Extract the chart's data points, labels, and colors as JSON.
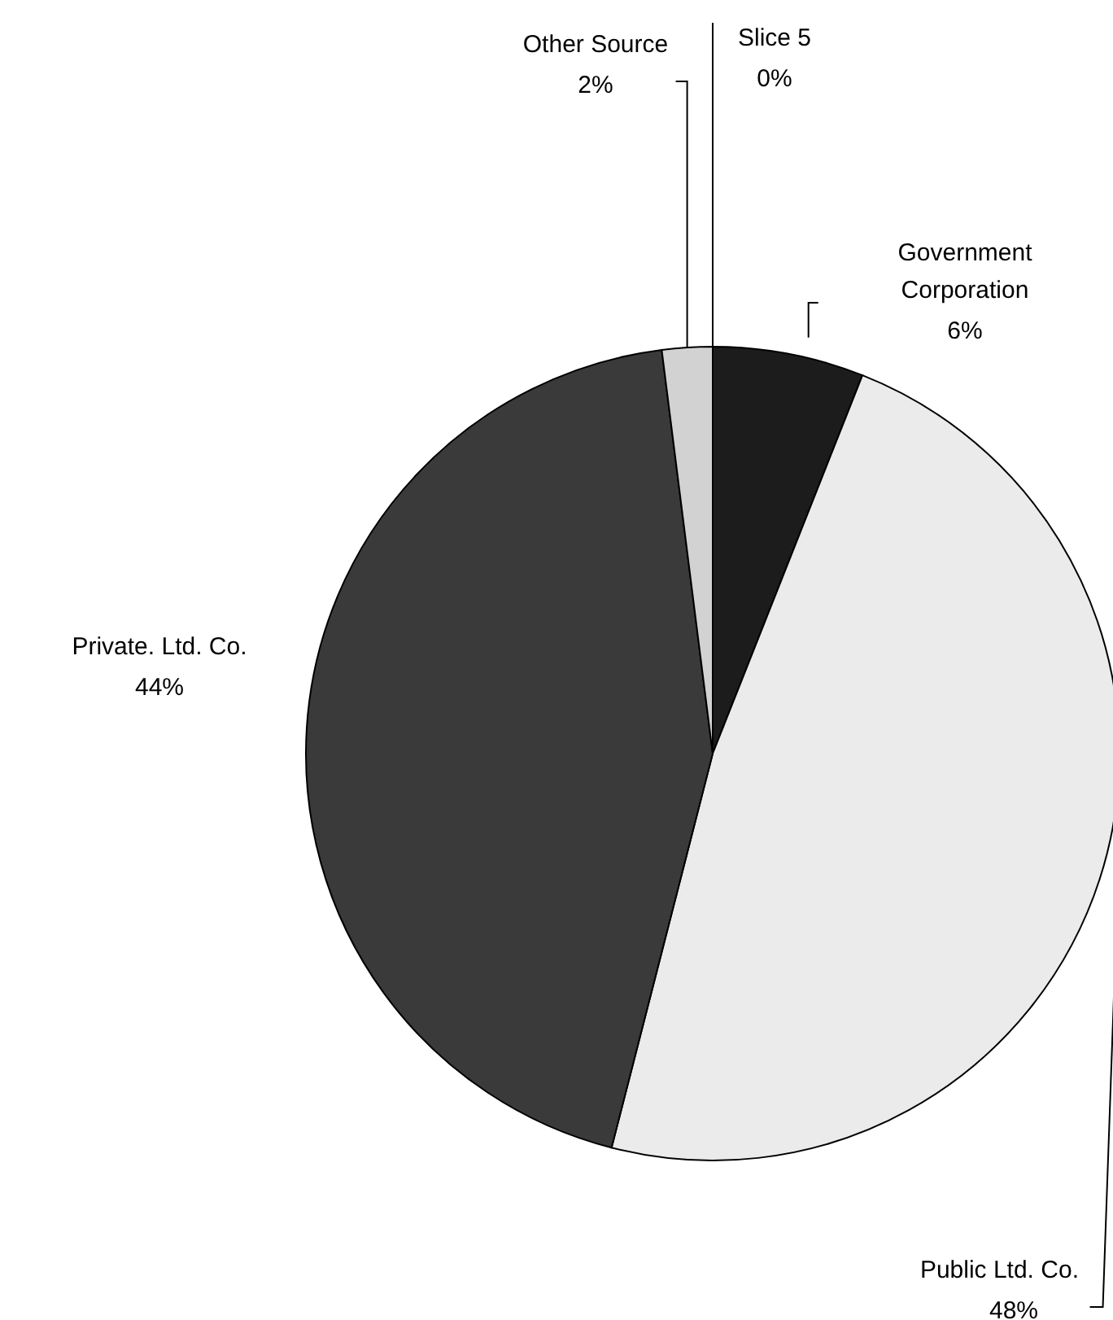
{
  "chart_data": {
    "type": "pie",
    "categories": [
      "Slice 5",
      "Government Corporation",
      "Public Ltd. Co.",
      "Private. Ltd. Co.",
      "Other Source"
    ],
    "values": [
      0,
      6,
      48,
      44,
      2
    ],
    "colors": [
      "#ffffff",
      "#1c1c1c",
      "#ebebeb",
      "#3a3a3a",
      "#d2d2d2"
    ],
    "value_labels": [
      "0%",
      "6%",
      "48%",
      "44%",
      "2%"
    ],
    "legend": false
  }
}
